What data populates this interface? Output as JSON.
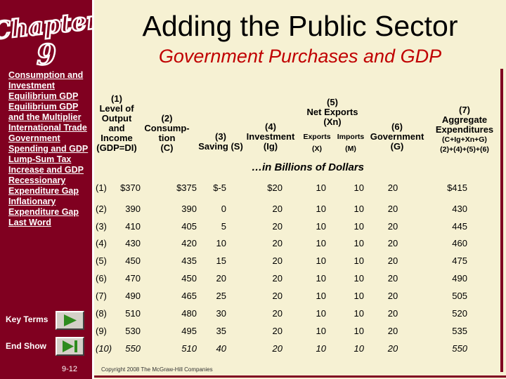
{
  "logo": {
    "word": "Chapter",
    "number": "9"
  },
  "sidebar": {
    "items": [
      "Consumption and Investment",
      "Equilibrium GDP",
      "Equilibrium GDP and the Multiplier",
      "International Trade",
      "Government Spending and GDP",
      "Lump-Sum Tax Increase and GDP",
      "Recessionary Expenditure Gap",
      "Inflationary Expenditure Gap",
      "Last Word"
    ],
    "key_terms_label": "Key Terms",
    "end_show_label": "End Show",
    "page_number": "9-12"
  },
  "slide": {
    "title": "Adding the Public Sector",
    "subtitle": "Government Purchases and GDP",
    "units_note": "…in Billions of Dollars",
    "copyright": "Copyright 2008 The McGraw-Hill Companies"
  },
  "headers": {
    "col1": [
      "(1)",
      "Level of",
      "Output",
      "and",
      "Income",
      "(GDP=DI)"
    ],
    "col2": [
      "(2)",
      "Consump-",
      "tion",
      "(C)"
    ],
    "col3": [
      "(3)",
      "Saving (S)"
    ],
    "col4": [
      "(4)",
      "Investment",
      "(Ig)"
    ],
    "col5": [
      "(5)",
      "Net Exports",
      "(Xn)"
    ],
    "col5_sub": {
      "exports": "Exports",
      "exports_sym": "(X)",
      "imports": "Imports",
      "imports_sym": "(M)"
    },
    "col6": [
      "(6)",
      "Government",
      "(G)"
    ],
    "col7": [
      "(7)",
      "Aggregate",
      "Expenditures",
      "(C+Ig+Xn+G)",
      "(2)+(4)+(5)+(6)"
    ]
  },
  "rows": [
    {
      "label": "(1)",
      "gdp": "$370",
      "c": "$375",
      "s": "$-5",
      "ig": "$20",
      "x": "10",
      "m": "10",
      "g": "20",
      "ae": "$415"
    },
    {
      "label": "(2)",
      "gdp": "390",
      "c": "390",
      "s": "0",
      "ig": "20",
      "x": "10",
      "m": "10",
      "g": "20",
      "ae": "430"
    },
    {
      "label": "(3)",
      "gdp": "410",
      "c": "405",
      "s": "5",
      "ig": "20",
      "x": "10",
      "m": "10",
      "g": "20",
      "ae": "445"
    },
    {
      "label": "(4)",
      "gdp": "430",
      "c": "420",
      "s": "10",
      "ig": "20",
      "x": "10",
      "m": "10",
      "g": "20",
      "ae": "460"
    },
    {
      "label": "(5)",
      "gdp": "450",
      "c": "435",
      "s": "15",
      "ig": "20",
      "x": "10",
      "m": "10",
      "g": "20",
      "ae": "475"
    },
    {
      "label": "(6)",
      "gdp": "470",
      "c": "450",
      "s": "20",
      "ig": "20",
      "x": "10",
      "m": "10",
      "g": "20",
      "ae": "490"
    },
    {
      "label": "(7)",
      "gdp": "490",
      "c": "465",
      "s": "25",
      "ig": "20",
      "x": "10",
      "m": "10",
      "g": "20",
      "ae": "505"
    },
    {
      "label": "(8)",
      "gdp": "510",
      "c": "480",
      "s": "30",
      "ig": "20",
      "x": "10",
      "m": "10",
      "g": "20",
      "ae": "520"
    },
    {
      "label": "(9)",
      "gdp": "530",
      "c": "495",
      "s": "35",
      "ig": "20",
      "x": "10",
      "m": "10",
      "g": "20",
      "ae": "535"
    },
    {
      "label": "(10)",
      "gdp": "550",
      "c": "510",
      "s": "40",
      "ig": "20",
      "x": "10",
      "m": "10",
      "g": "20",
      "ae": "550"
    }
  ],
  "colors": {
    "sidebar": "#800020",
    "background": "#f6f1d3",
    "subtitle": "#c00000",
    "button_arrow": "#2e8b1e"
  }
}
